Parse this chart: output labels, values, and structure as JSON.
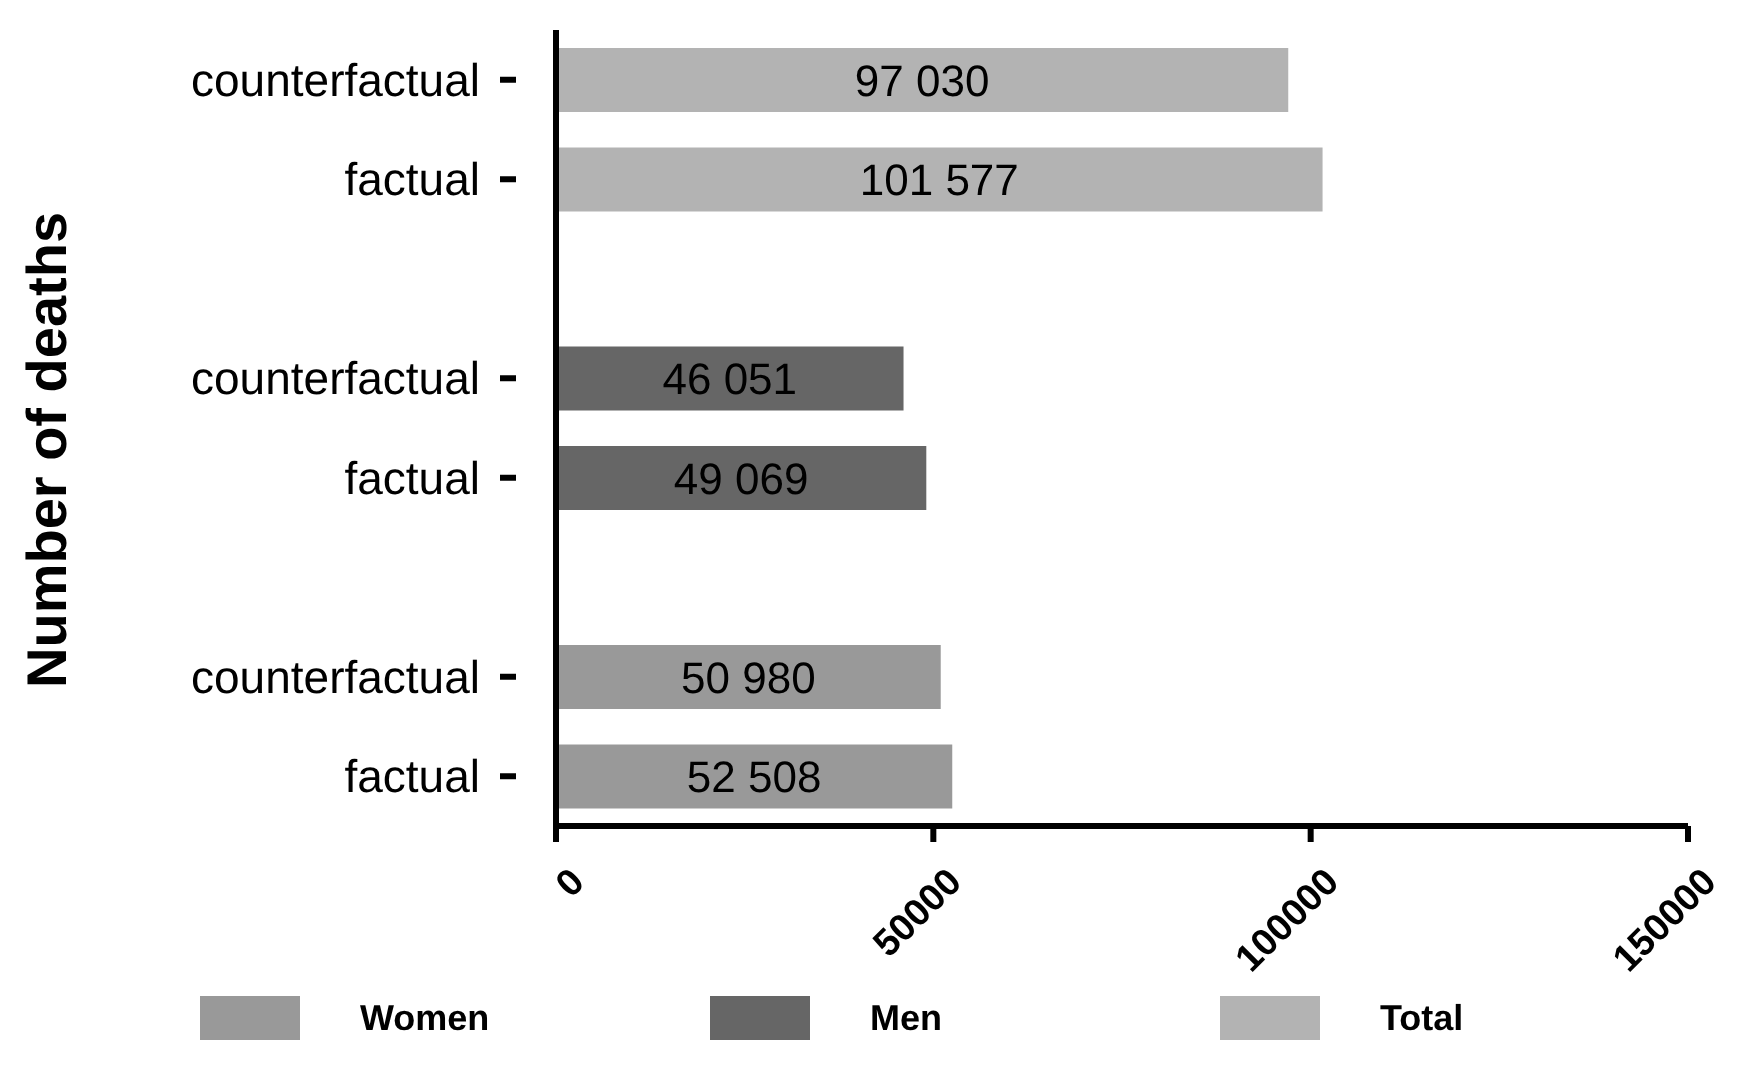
{
  "chart_data": {
    "type": "bar",
    "orientation": "horizontal",
    "stacked": true,
    "ylabel": "Number of deaths",
    "categories": [
      "counterfactual",
      "factual",
      null,
      "counterfactual",
      "factual",
      null,
      "counterfactual",
      "factual"
    ],
    "series": [
      {
        "name": "Women",
        "color": "#999999",
        "values": [
          null,
          null,
          null,
          null,
          null,
          null,
          50980,
          52508
        ],
        "value_labels": [
          null,
          null,
          null,
          null,
          null,
          null,
          "50 980",
          "52 508"
        ]
      },
      {
        "name": "Men",
        "color": "#666666",
        "values": [
          null,
          null,
          null,
          46051,
          49069,
          null,
          null,
          null
        ],
        "value_labels": [
          null,
          null,
          null,
          "46 051",
          "49 069",
          null,
          null,
          null
        ]
      },
      {
        "name": "Total",
        "color": "#b3b3b3",
        "values": [
          97030,
          101577,
          null,
          null,
          null,
          null,
          null,
          null
        ],
        "value_labels": [
          "97 030",
          "101 577",
          null,
          null,
          null,
          null,
          null,
          null
        ]
      }
    ],
    "xlim": [
      0,
      150000
    ],
    "xticks": [
      0,
      50000,
      100000,
      150000
    ],
    "grid": false,
    "legend": "bottom"
  }
}
